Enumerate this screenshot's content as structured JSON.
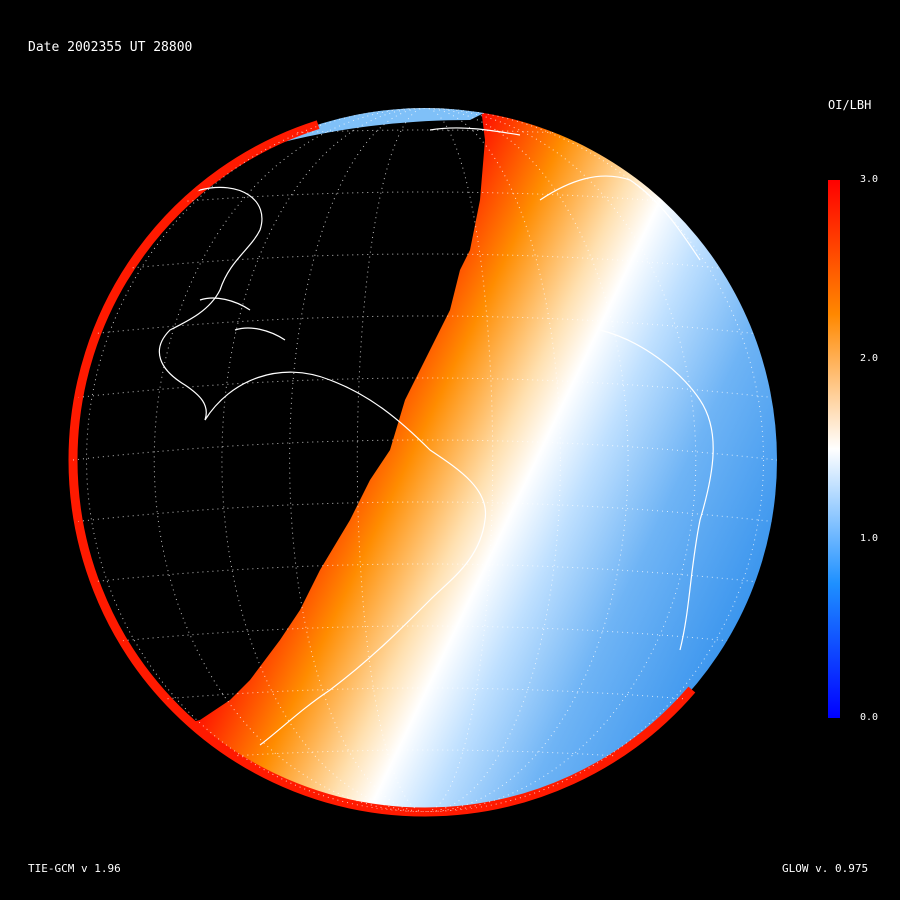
{
  "header": {
    "date_text": "Date 2002355   UT 28800"
  },
  "footer": {
    "model_left": "TIE-GCM v 1.96",
    "model_right": "GLOW v. 0.975"
  },
  "colorbar": {
    "title": "OI/LBH",
    "ticks": [
      "3.0",
      "2.0",
      "1.0",
      "0.0"
    ],
    "colors": [
      "#ff0000",
      "#ff8800",
      "#ffffff",
      "#1e90ff",
      "#0000ff"
    ]
  }
}
